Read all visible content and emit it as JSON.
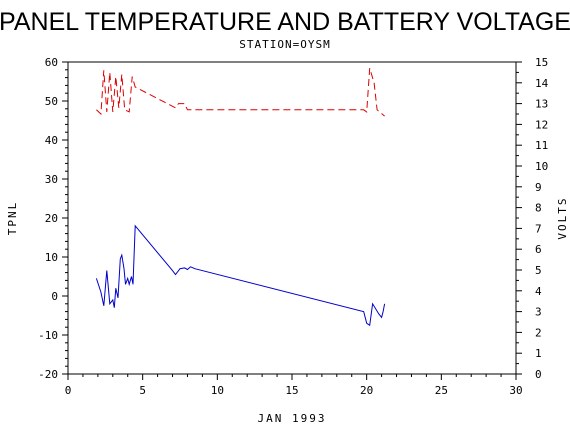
{
  "chart_data": {
    "type": "line",
    "title": "PANEL TEMPERATURE AND BATTERY VOLTAGE",
    "subtitle": "STATION=OYSM",
    "xlabel": "JAN 1993",
    "ylabel_left": "TPNL",
    "ylabel_right": "VOLTS",
    "xlim": [
      0,
      30
    ],
    "ylim_left": [
      -20,
      60
    ],
    "ylim_right": [
      0,
      15
    ],
    "x_ticks": [
      0,
      5,
      10,
      15,
      20,
      25,
      30
    ],
    "y_left_ticks": [
      -20,
      -10,
      0,
      10,
      20,
      30,
      40,
      50,
      60
    ],
    "y_right_ticks": [
      0,
      1,
      2,
      3,
      4,
      5,
      6,
      7,
      8,
      9,
      10,
      11,
      12,
      13,
      14,
      15
    ],
    "grid": false,
    "series": [
      {
        "axis": "left",
        "color": "#0000cc",
        "dash": "solid",
        "points": [
          [
            1.9,
            4.5
          ],
          [
            2.2,
            1.0
          ],
          [
            2.4,
            -2.5
          ],
          [
            2.6,
            6.5
          ],
          [
            2.8,
            -2.0
          ],
          [
            3.0,
            -1.0
          ],
          [
            3.1,
            -3.0
          ],
          [
            3.2,
            2.0
          ],
          [
            3.35,
            -0.5
          ],
          [
            3.5,
            9.5
          ],
          [
            3.6,
            10.5
          ],
          [
            3.75,
            7.0
          ],
          [
            3.85,
            3.0
          ],
          [
            4.0,
            4.5
          ],
          [
            4.1,
            3.0
          ],
          [
            4.25,
            5.0
          ],
          [
            4.35,
            3.0
          ],
          [
            4.5,
            18.0
          ],
          [
            7.0,
            6.5
          ],
          [
            7.2,
            5.5
          ],
          [
            7.5,
            7.0
          ],
          [
            7.8,
            7.2
          ],
          [
            8.0,
            6.8
          ],
          [
            8.2,
            7.5
          ],
          [
            8.5,
            7.0
          ],
          [
            19.8,
            -4.0
          ],
          [
            20.0,
            -7.0
          ],
          [
            20.2,
            -7.5
          ],
          [
            20.4,
            -2.0
          ],
          [
            20.8,
            -4.5
          ],
          [
            21.0,
            -5.5
          ],
          [
            21.1,
            -4.0
          ],
          [
            21.2,
            -2.0
          ]
        ]
      },
      {
        "axis": "right",
        "color": "#dd0000",
        "dash": "dashed",
        "points": [
          [
            1.9,
            12.7
          ],
          [
            2.2,
            12.5
          ],
          [
            2.4,
            14.6
          ],
          [
            2.6,
            12.6
          ],
          [
            2.8,
            14.5
          ],
          [
            3.0,
            12.6
          ],
          [
            3.2,
            14.3
          ],
          [
            3.4,
            12.8
          ],
          [
            3.6,
            14.4
          ],
          [
            3.8,
            12.7
          ],
          [
            4.1,
            12.6
          ],
          [
            4.3,
            14.3
          ],
          [
            4.5,
            13.8
          ],
          [
            7.2,
            12.8
          ],
          [
            7.4,
            13.0
          ],
          [
            7.8,
            13.0
          ],
          [
            8.0,
            12.7
          ],
          [
            8.5,
            12.7
          ],
          [
            19.8,
            12.7
          ],
          [
            20.0,
            12.6
          ],
          [
            20.2,
            14.7
          ],
          [
            20.5,
            14.0
          ],
          [
            20.7,
            12.7
          ],
          [
            21.2,
            12.4
          ]
        ]
      }
    ]
  }
}
